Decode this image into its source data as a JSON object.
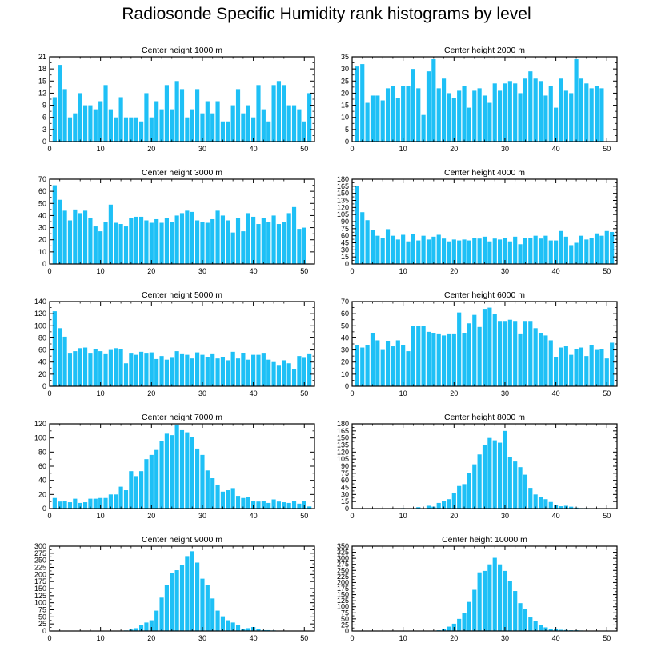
{
  "figure_title": "Radiosonde Specific Humidity rank histograms by level",
  "colors": {
    "bar": "#1ec0f6",
    "axis": "#000000",
    "background": "#ffffff"
  },
  "chart_data": [
    {
      "type": "bar",
      "title": "Center height 1000 m",
      "xlim": [
        0,
        52
      ],
      "ylim": [
        0,
        21
      ],
      "xticks": [
        0,
        10,
        20,
        30,
        40,
        50
      ],
      "yticks": [
        0,
        3,
        6,
        9,
        12,
        15,
        18,
        21
      ],
      "values": [
        11,
        19,
        13,
        6,
        7,
        12,
        9,
        9,
        8,
        10,
        14,
        8,
        6,
        11,
        6,
        6,
        6,
        5,
        12,
        6,
        10,
        8,
        14,
        8,
        15,
        13,
        6,
        8,
        13,
        7,
        10,
        7,
        10,
        5,
        5,
        9,
        13,
        7,
        9,
        6,
        14,
        8,
        5,
        14,
        15,
        14,
        9,
        9,
        8,
        5,
        12
      ]
    },
    {
      "type": "bar",
      "title": "Center height 2000 m",
      "xlim": [
        0,
        52
      ],
      "ylim": [
        0,
        35
      ],
      "xticks": [
        0,
        10,
        20,
        30,
        40,
        50
      ],
      "yticks": [
        0,
        5,
        10,
        15,
        20,
        25,
        30,
        35
      ],
      "values": [
        31,
        32,
        16,
        19,
        19,
        17,
        22,
        23,
        18,
        23,
        23,
        30,
        22,
        11,
        29,
        34,
        22,
        26,
        20,
        18,
        21,
        23,
        14,
        21,
        22,
        19,
        16,
        24,
        21,
        24,
        25,
        24,
        20,
        26,
        29,
        26,
        25,
        19,
        23,
        14,
        26,
        21,
        20,
        34,
        26,
        24,
        22,
        23,
        22
      ]
    },
    {
      "type": "bar",
      "title": "Center height 3000 m",
      "xlim": [
        0,
        52
      ],
      "ylim": [
        0,
        70
      ],
      "xticks": [
        0,
        10,
        20,
        30,
        40,
        50
      ],
      "yticks": [
        0,
        10,
        20,
        30,
        40,
        50,
        60,
        70
      ],
      "values": [
        65,
        53,
        44,
        36,
        45,
        42,
        44,
        38,
        31,
        27,
        35,
        49,
        34,
        33,
        31,
        38,
        39,
        39,
        36,
        34,
        37,
        34,
        38,
        35,
        40,
        42,
        44,
        43,
        36,
        35,
        34,
        37,
        44,
        40,
        36,
        26,
        38,
        27,
        42,
        39,
        33,
        38,
        35,
        40,
        33,
        35,
        42,
        47,
        29,
        30
      ]
    },
    {
      "type": "bar",
      "title": "Center height 4000 m",
      "xlim": [
        0,
        52
      ],
      "ylim": [
        0,
        180
      ],
      "xticks": [
        0,
        10,
        20,
        30,
        40,
        50
      ],
      "yticks": [
        0,
        15,
        30,
        45,
        60,
        75,
        90,
        105,
        120,
        135,
        150,
        165,
        180
      ],
      "values": [
        165,
        110,
        93,
        72,
        60,
        56,
        74,
        60,
        52,
        62,
        48,
        64,
        50,
        60,
        52,
        58,
        62,
        54,
        48,
        52,
        50,
        52,
        50,
        56,
        54,
        58,
        48,
        54,
        52,
        56,
        48,
        58,
        42,
        56,
        56,
        60,
        54,
        60,
        50,
        50,
        70,
        58,
        40,
        45,
        60,
        52,
        56,
        65,
        60,
        70,
        68
      ]
    },
    {
      "type": "bar",
      "title": "Center height 5000 m",
      "xlim": [
        0,
        52
      ],
      "ylim": [
        0,
        140
      ],
      "xticks": [
        0,
        10,
        20,
        30,
        40,
        50
      ],
      "yticks": [
        0,
        20,
        40,
        60,
        80,
        100,
        120,
        140
      ],
      "values": [
        124,
        96,
        82,
        54,
        58,
        63,
        64,
        54,
        62,
        58,
        53,
        60,
        63,
        61,
        38,
        54,
        52,
        57,
        54,
        56,
        45,
        50,
        44,
        47,
        58,
        53,
        52,
        46,
        56,
        52,
        48,
        53,
        46,
        48,
        43,
        57,
        46,
        55,
        44,
        52,
        52,
        54,
        44,
        40,
        34,
        43,
        38,
        28,
        50,
        47,
        53
      ]
    },
    {
      "type": "bar",
      "title": "Center height 6000 m",
      "xlim": [
        0,
        52
      ],
      "ylim": [
        0,
        70
      ],
      "xticks": [
        0,
        10,
        20,
        30,
        40,
        50
      ],
      "yticks": [
        0,
        10,
        20,
        30,
        40,
        50,
        60,
        70
      ],
      "values": [
        34,
        32,
        34,
        44,
        38,
        30,
        37,
        33,
        38,
        34,
        29,
        50,
        50,
        50,
        45,
        44,
        43,
        42,
        43,
        43,
        61,
        44,
        52,
        59,
        49,
        64,
        65,
        60,
        54,
        54,
        55,
        54,
        43,
        54,
        54,
        48,
        44,
        42,
        38,
        24,
        32,
        33,
        26,
        31,
        32,
        25,
        34,
        30,
        31,
        23,
        36
      ]
    },
    {
      "type": "bar",
      "title": "Center height 7000 m",
      "xlim": [
        0,
        52
      ],
      "ylim": [
        0,
        120
      ],
      "xticks": [
        0,
        10,
        20,
        30,
        40,
        50
      ],
      "yticks": [
        0,
        20,
        40,
        60,
        80,
        100,
        120
      ],
      "values": [
        15,
        10,
        11,
        9,
        14,
        8,
        9,
        14,
        14,
        15,
        15,
        20,
        20,
        31,
        26,
        53,
        46,
        53,
        70,
        76,
        83,
        96,
        106,
        104,
        119,
        111,
        108,
        101,
        85,
        76,
        54,
        43,
        34,
        24,
        26,
        29,
        18,
        15,
        16,
        11,
        10,
        11,
        8,
        13,
        10,
        9,
        8,
        11,
        7,
        11,
        3
      ]
    },
    {
      "type": "bar",
      "title": "Center height 8000 m",
      "xlim": [
        0,
        52
      ],
      "ylim": [
        0,
        180
      ],
      "xticks": [
        0,
        10,
        20,
        30,
        40,
        50
      ],
      "yticks": [
        0,
        15,
        30,
        45,
        60,
        75,
        90,
        105,
        120,
        135,
        150,
        165,
        180
      ],
      "values": [
        0,
        0,
        0,
        0,
        0,
        0,
        0,
        0,
        0,
        1,
        0,
        0,
        3,
        0,
        6,
        4,
        12,
        16,
        20,
        34,
        48,
        52,
        76,
        94,
        115,
        135,
        150,
        145,
        140,
        165,
        110,
        100,
        88,
        72,
        44,
        30,
        25,
        20,
        14,
        8,
        5,
        6,
        4,
        2,
        1,
        1,
        0,
        0,
        0,
        0,
        0,
        0
      ]
    },
    {
      "type": "bar",
      "title": "Center height 9000 m",
      "xlim": [
        0,
        52
      ],
      "ylim": [
        0,
        300
      ],
      "xticks": [
        0,
        10,
        20,
        30,
        40,
        50
      ],
      "yticks": [
        0,
        25,
        50,
        75,
        100,
        125,
        150,
        175,
        200,
        225,
        250,
        275,
        300
      ],
      "values": [
        0,
        0,
        0,
        0,
        0,
        0,
        0,
        0,
        0,
        0,
        0,
        0,
        0,
        0,
        2,
        5,
        10,
        20,
        30,
        38,
        72,
        118,
        162,
        205,
        215,
        233,
        265,
        282,
        242,
        185,
        162,
        115,
        72,
        52,
        38,
        30,
        22,
        8,
        10,
        14,
        6,
        3,
        3,
        2,
        1,
        1,
        1,
        0,
        0,
        0,
        0,
        0
      ]
    },
    {
      "type": "bar",
      "title": "Center height 10000 m",
      "xlim": [
        0,
        52
      ],
      "ylim": [
        0,
        350
      ],
      "xticks": [
        0,
        10,
        20,
        30,
        40,
        50
      ],
      "yticks": [
        0,
        25,
        50,
        75,
        100,
        125,
        150,
        175,
        200,
        225,
        250,
        275,
        300,
        325,
        350
      ],
      "values": [
        0,
        0,
        0,
        0,
        0,
        0,
        0,
        0,
        0,
        0,
        0,
        0,
        0,
        0,
        0,
        0,
        3,
        8,
        18,
        30,
        50,
        75,
        120,
        170,
        242,
        248,
        275,
        302,
        275,
        248,
        205,
        165,
        115,
        90,
        56,
        42,
        26,
        15,
        8,
        8,
        5,
        4,
        3,
        3,
        2,
        1,
        1,
        1,
        0,
        0,
        0,
        0
      ]
    }
  ]
}
